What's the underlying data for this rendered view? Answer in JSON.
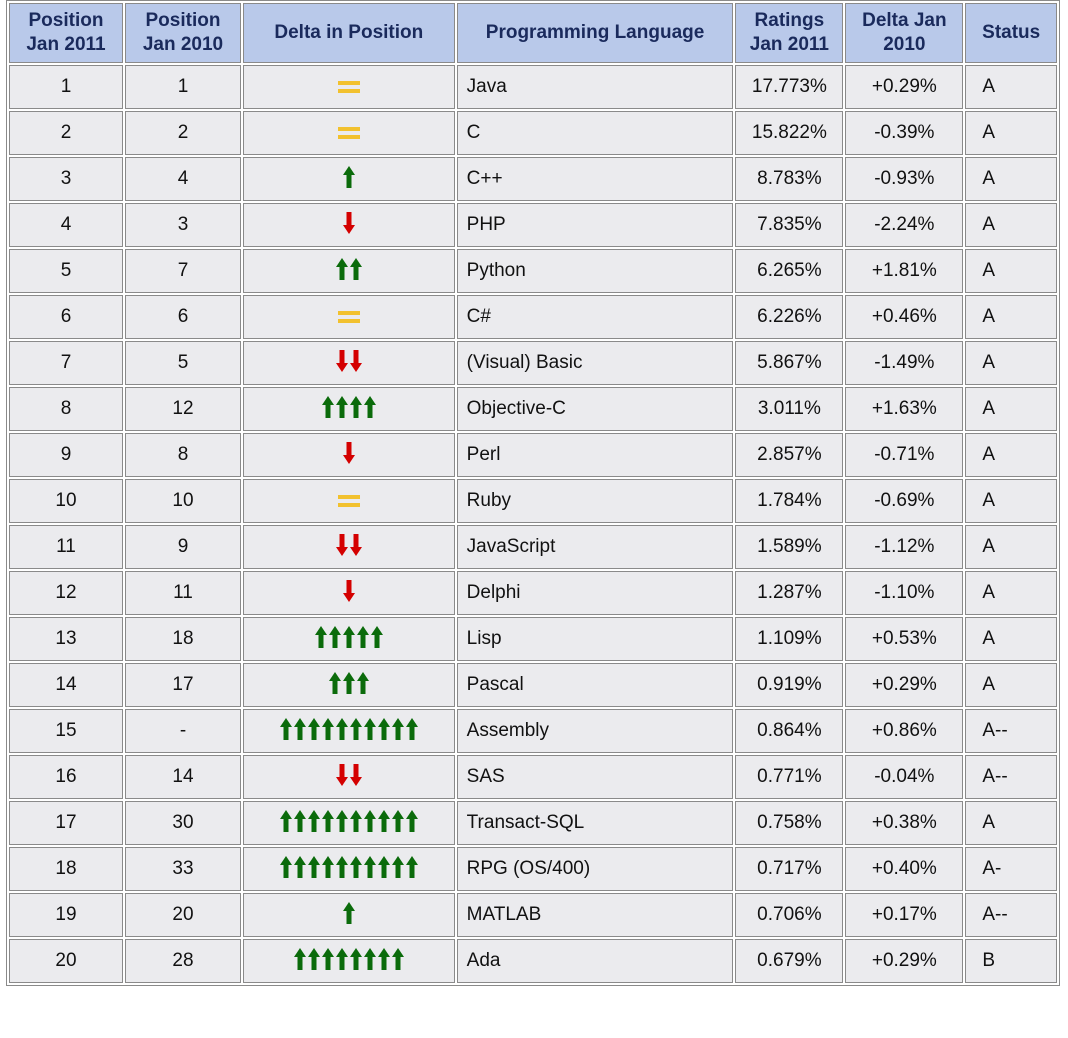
{
  "table": {
    "headers": {
      "pos2011": "Position Jan 2011",
      "pos2010": "Position Jan 2010",
      "delta": "Delta in Position",
      "lang": "Programming Language",
      "ratings": "Ratings Jan 2011",
      "deltaRatings": "Delta Jan 2010",
      "status": "Status"
    },
    "rows": [
      {
        "pos": "1",
        "prev": "1",
        "delta": {
          "dir": "eq",
          "count": 0
        },
        "lang": "Java",
        "rating": "17.773%",
        "change": "+0.29%",
        "status": "A"
      },
      {
        "pos": "2",
        "prev": "2",
        "delta": {
          "dir": "eq",
          "count": 0
        },
        "lang": "C",
        "rating": "15.822%",
        "change": "-0.39%",
        "status": "A"
      },
      {
        "pos": "3",
        "prev": "4",
        "delta": {
          "dir": "up",
          "count": 1
        },
        "lang": "C++",
        "rating": "8.783%",
        "change": "-0.93%",
        "status": "A"
      },
      {
        "pos": "4",
        "prev": "3",
        "delta": {
          "dir": "down",
          "count": 1
        },
        "lang": "PHP",
        "rating": "7.835%",
        "change": "-2.24%",
        "status": "A"
      },
      {
        "pos": "5",
        "prev": "7",
        "delta": {
          "dir": "up",
          "count": 2
        },
        "lang": "Python",
        "rating": "6.265%",
        "change": "+1.81%",
        "status": "A"
      },
      {
        "pos": "6",
        "prev": "6",
        "delta": {
          "dir": "eq",
          "count": 0
        },
        "lang": "C#",
        "rating": "6.226%",
        "change": "+0.46%",
        "status": "A"
      },
      {
        "pos": "7",
        "prev": "5",
        "delta": {
          "dir": "down",
          "count": 2
        },
        "lang": "(Visual) Basic",
        "rating": "5.867%",
        "change": "-1.49%",
        "status": "A"
      },
      {
        "pos": "8",
        "prev": "12",
        "delta": {
          "dir": "up",
          "count": 4
        },
        "lang": "Objective-C",
        "rating": "3.011%",
        "change": "+1.63%",
        "status": "A"
      },
      {
        "pos": "9",
        "prev": "8",
        "delta": {
          "dir": "down",
          "count": 1
        },
        "lang": "Perl",
        "rating": "2.857%",
        "change": "-0.71%",
        "status": "A"
      },
      {
        "pos": "10",
        "prev": "10",
        "delta": {
          "dir": "eq",
          "count": 0
        },
        "lang": "Ruby",
        "rating": "1.784%",
        "change": "-0.69%",
        "status": "A"
      },
      {
        "pos": "11",
        "prev": "9",
        "delta": {
          "dir": "down",
          "count": 2
        },
        "lang": "JavaScript",
        "rating": "1.589%",
        "change": "-1.12%",
        "status": "A"
      },
      {
        "pos": "12",
        "prev": "11",
        "delta": {
          "dir": "down",
          "count": 1
        },
        "lang": "Delphi",
        "rating": "1.287%",
        "change": "-1.10%",
        "status": "A"
      },
      {
        "pos": "13",
        "prev": "18",
        "delta": {
          "dir": "up",
          "count": 5
        },
        "lang": "Lisp",
        "rating": "1.109%",
        "change": "+0.53%",
        "status": "A"
      },
      {
        "pos": "14",
        "prev": "17",
        "delta": {
          "dir": "up",
          "count": 3
        },
        "lang": "Pascal",
        "rating": "0.919%",
        "change": "+0.29%",
        "status": "A"
      },
      {
        "pos": "15",
        "prev": "-",
        "delta": {
          "dir": "up",
          "count": 10
        },
        "lang": "Assembly",
        "rating": "0.864%",
        "change": "+0.86%",
        "status": "A--"
      },
      {
        "pos": "16",
        "prev": "14",
        "delta": {
          "dir": "down",
          "count": 2
        },
        "lang": "SAS",
        "rating": "0.771%",
        "change": "-0.04%",
        "status": "A--"
      },
      {
        "pos": "17",
        "prev": "30",
        "delta": {
          "dir": "up",
          "count": 10
        },
        "lang": "Transact-SQL",
        "rating": "0.758%",
        "change": "+0.38%",
        "status": "A"
      },
      {
        "pos": "18",
        "prev": "33",
        "delta": {
          "dir": "up",
          "count": 10
        },
        "lang": "RPG (OS/400)",
        "rating": "0.717%",
        "change": "+0.40%",
        "status": "A-"
      },
      {
        "pos": "19",
        "prev": "20",
        "delta": {
          "dir": "up",
          "count": 1
        },
        "lang": "MATLAB",
        "rating": "0.706%",
        "change": "+0.17%",
        "status": "A--"
      },
      {
        "pos": "20",
        "prev": "28",
        "delta": {
          "dir": "up",
          "count": 8
        },
        "lang": "Ada",
        "rating": "0.679%",
        "change": "+0.29%",
        "status": "B"
      }
    ]
  },
  "colors": {
    "header_bg": "#b9c9ea",
    "header_text": "#1a2a5c",
    "cell_bg": "#ebebee",
    "border": "#8a8a8a",
    "arrow_up": "#0b6b0b",
    "arrow_down": "#d40000",
    "equal": "#f2c12e"
  },
  "icons": {
    "up": "arrow-up-icon",
    "down": "arrow-down-icon",
    "eq": "equal-sign-icon"
  }
}
